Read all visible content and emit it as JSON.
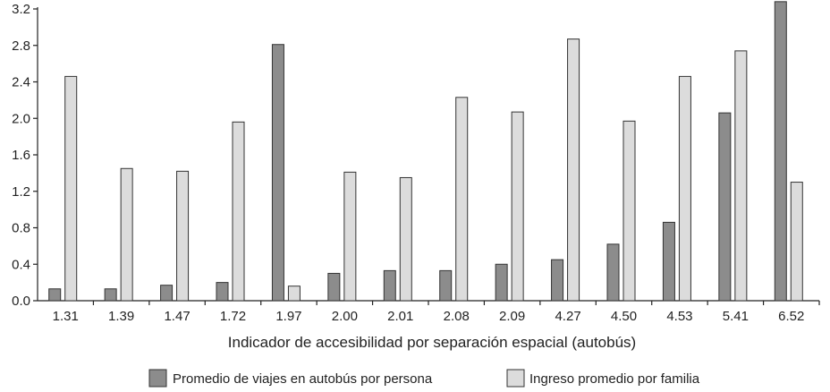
{
  "chart_data": {
    "type": "bar",
    "categories": [
      "1.31",
      "1.39",
      "1.47",
      "1.72",
      "1.97",
      "2.00",
      "2.01",
      "2.08",
      "2.09",
      "4.27",
      "4.50",
      "4.53",
      "5.41",
      "6.52"
    ],
    "series": [
      {
        "name": "Promedio de viajes en autobús por persona",
        "color": "#8c8c8c",
        "values": [
          0.13,
          0.13,
          0.17,
          0.2,
          2.81,
          0.3,
          0.33,
          0.33,
          0.4,
          0.45,
          0.62,
          0.86,
          2.06,
          3.28
        ]
      },
      {
        "name": "Ingreso promedio por familia",
        "color": "#dcdcdc",
        "values": [
          2.46,
          1.45,
          1.42,
          1.96,
          0.16,
          1.41,
          1.35,
          2.23,
          2.07,
          2.87,
          1.97,
          2.46,
          2.74,
          1.3
        ]
      }
    ],
    "xlabel": "Indicador de accesibilidad por separación espacial (autobús)",
    "ylabel": "",
    "ylim": [
      0,
      3.2
    ],
    "yticks": [
      "0.0",
      "0.4",
      "0.8",
      "1.2",
      "1.6",
      "2.0",
      "2.4",
      "2.8",
      "3.2"
    ],
    "grid": false,
    "legend_position": "bottom"
  }
}
